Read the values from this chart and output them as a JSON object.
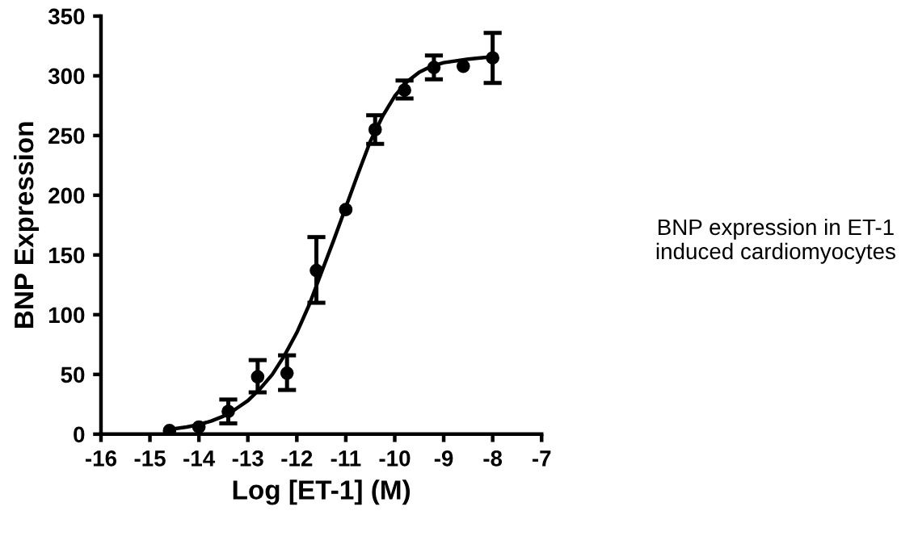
{
  "chart_data": {
    "type": "scatter",
    "xlabel": "Log [ET-1] (M)",
    "ylabel": "BNP Expression",
    "xlim": [
      -16,
      -7
    ],
    "ylim": [
      0,
      350
    ],
    "xticks": [
      -16,
      -15,
      -14,
      -13,
      -12,
      -11,
      -10,
      -9,
      -8,
      -7
    ],
    "yticks": [
      0,
      50,
      100,
      150,
      200,
      250,
      300,
      350
    ],
    "grid": false,
    "legend": false,
    "marker": "circle",
    "annotations": [
      "BNP expression in ET-1\ninduced cardiomyocytes"
    ],
    "series": [
      {
        "color": "#000000",
        "x": [
          -14.6,
          -14.0,
          -13.4,
          -12.8,
          -12.2,
          -11.6,
          -11.0,
          -10.4,
          -9.8,
          -9.2,
          -8.6,
          -8.0
        ],
        "values": [
          3,
          6,
          19,
          48,
          51,
          137,
          188,
          255,
          288,
          307,
          308,
          315
        ],
        "errors": [
          null,
          null,
          [
            9,
            29
          ],
          [
            35,
            62
          ],
          [
            37,
            66
          ],
          [
            110,
            165
          ],
          null,
          [
            243,
            267
          ],
          [
            281,
            296
          ],
          [
            297,
            317
          ],
          null,
          [
            294,
            336
          ]
        ]
      },
      {
        "type": "line",
        "color": "#000000",
        "line_style": "solid",
        "marker": "none",
        "x": [
          -14.6,
          -14.25,
          -14.0,
          -13.75,
          -13.5,
          -13.25,
          -13.0,
          -12.75,
          -12.5,
          -12.25,
          -12.0,
          -11.75,
          -11.5,
          -11.25,
          -11.0,
          -10.75,
          -10.5,
          -10.25,
          -10.0,
          -9.75,
          -9.5,
          -9.25,
          -9.0,
          -8.5,
          -8.0
        ],
        "values": [
          4,
          6,
          8,
          11,
          15,
          21,
          28,
          38,
          50,
          66,
          85,
          108,
          135,
          162,
          190,
          218,
          245,
          266,
          283,
          295,
          303,
          308,
          311,
          314,
          316
        ]
      }
    ]
  }
}
